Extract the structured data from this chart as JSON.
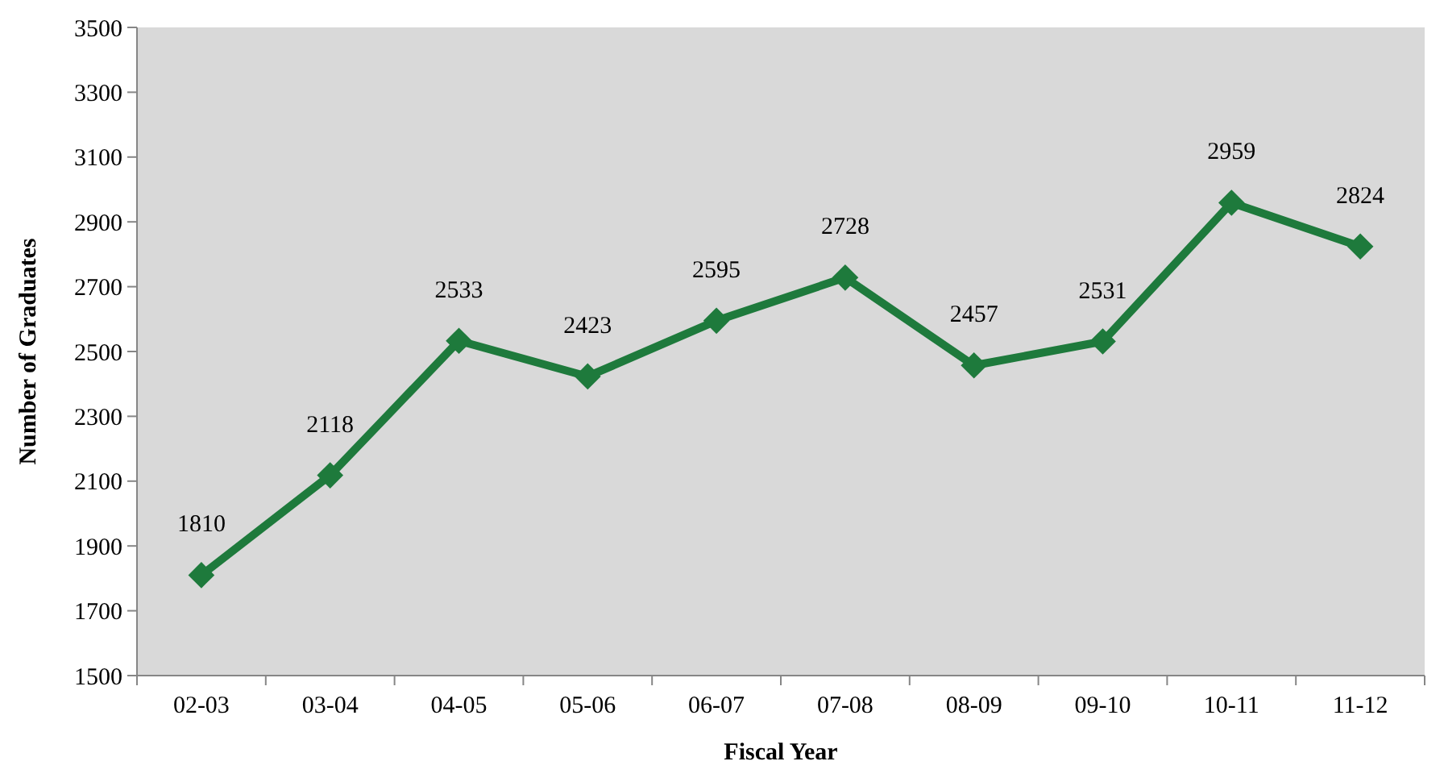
{
  "chart_data": {
    "type": "line",
    "xlabel": "Fiscal Year",
    "ylabel": "Number of Graduates",
    "categories": [
      "02-03",
      "03-04",
      "04-05",
      "05-06",
      "06-07",
      "07-08",
      "08-09",
      "09-10",
      "10-11",
      "11-12"
    ],
    "series": [
      {
        "color": "#1e7a3c",
        "values": [
          1810,
          2118,
          2533,
          2423,
          2595,
          2728,
          2457,
          2531,
          2959,
          2824
        ]
      }
    ],
    "ylim": [
      1500,
      3500
    ],
    "yticks": [
      1500,
      1700,
      1900,
      2100,
      2300,
      2500,
      2700,
      2900,
      3100,
      3300,
      3500
    ],
    "marker": "diamond",
    "line_style": "solid",
    "data_labels": true,
    "grid": false
  }
}
